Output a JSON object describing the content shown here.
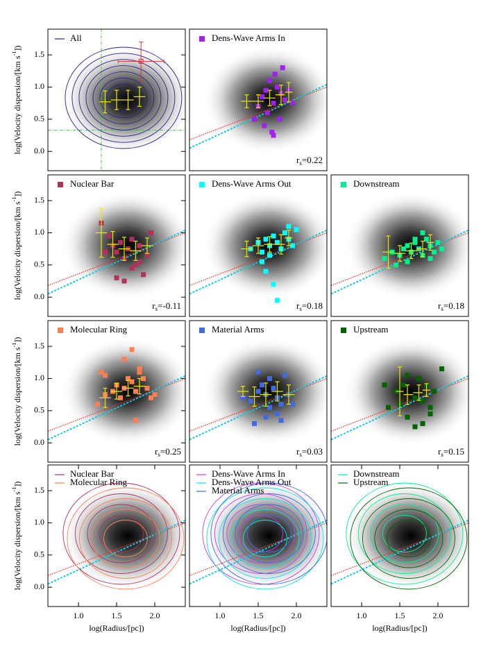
{
  "chart_data": [
    {
      "type": "contour",
      "xlim": [
        0.6,
        2.4
      ],
      "ylim": [
        -0.3,
        1.9
      ],
      "yticks": [
        {
          "value": 0,
          "label": "0.0"
        },
        {
          "value": 0.5,
          "label": "0.5"
        },
        {
          "value": 1.0,
          "label": "1.0"
        },
        {
          "value": 1.5,
          "label": "1.5"
        }
      ],
      "ylabel": "log(Velocity dispersion/[km s",
      "ylabel_sup": "-1",
      "ylabel_end": "])",
      "series": [
        {
          "name": "All",
          "color": "#23238e"
        }
      ],
      "guides": {
        "x": 1.3,
        "y": 0.33,
        "color": "#33cc33"
      },
      "error_point": {
        "x": 1.82,
        "y": 1.4,
        "xerr": 0.3,
        "yerr": 0.3,
        "color": "#dd3333"
      },
      "binned": {
        "color": "#e8e800",
        "x": [
          1.35,
          1.5,
          1.65,
          1.8
        ],
        "y": [
          0.77,
          0.8,
          0.8,
          0.85
        ],
        "err": [
          0.17,
          0.15,
          0.15,
          0.15
        ]
      }
    },
    {
      "type": "scatter",
      "xlim": [
        0.6,
        2.4
      ],
      "ylim": [
        -0.3,
        1.9
      ],
      "series": [
        {
          "name": "Dens-Wave Arms In",
          "color": "#a020f0",
          "x": [
            1.55,
            1.6,
            1.65,
            1.7,
            1.75,
            1.8,
            1.5,
            1.62,
            1.72,
            1.85,
            1.9,
            1.58,
            1.68,
            1.78,
            1.95,
            1.45,
            1.7,
            1.82
          ],
          "y": [
            0.85,
            0.95,
            1.1,
            0.75,
            1.0,
            0.9,
            0.7,
            0.6,
            1.2,
            0.8,
            0.95,
            0.4,
            0.3,
            0.5,
            0.75,
            0.5,
            0.25,
            1.3
          ]
        }
      ],
      "fits": [
        {
          "color": "#ee3333",
          "x": [
            0.6,
            2.4
          ],
          "y": [
            0.18,
            1.0
          ]
        },
        {
          "color": "#11ccdd",
          "x": [
            0.6,
            2.4
          ],
          "y": [
            0.05,
            1.04
          ]
        }
      ],
      "binned": {
        "color": "#e8e800",
        "x": [
          1.35,
          1.5,
          1.65,
          1.8,
          1.9
        ],
        "y": [
          0.78,
          0.78,
          0.83,
          0.88,
          0.92
        ],
        "err": [
          0.1,
          0.1,
          0.12,
          0.15,
          0.15
        ]
      },
      "annotation": {
        "symbol": "r",
        "subscript": "s",
        "text": "=0.22"
      }
    },
    {
      "type": "scatter",
      "xlim": [
        0.6,
        2.4
      ],
      "ylim": [
        -0.3,
        1.9
      ],
      "yticks": [
        {
          "value": 0,
          "label": "0.0"
        },
        {
          "value": 0.5,
          "label": "0.5"
        },
        {
          "value": 1.0,
          "label": "1.0"
        },
        {
          "value": 1.5,
          "label": "1.5"
        }
      ],
      "ylabel": "log(Velocity dispersion/[km s",
      "ylabel_sup": "-1",
      "ylabel_end": "])",
      "series": [
        {
          "name": "Nuclear Bar",
          "color": "#b03060",
          "x": [
            1.3,
            1.4,
            1.45,
            1.5,
            1.55,
            1.6,
            1.65,
            1.7,
            1.75,
            1.8,
            1.85,
            1.9,
            1.95,
            1.5,
            1.6,
            1.7,
            1.8,
            1.35
          ],
          "y": [
            1.15,
            0.95,
            0.8,
            0.7,
            0.85,
            0.6,
            0.75,
            0.9,
            0.5,
            0.8,
            0.35,
            0.65,
            1.0,
            0.3,
            0.25,
            0.45,
            0.55,
            0.7
          ]
        }
      ],
      "fits": [
        {
          "color": "#ee3333",
          "x": [
            0.6,
            2.4
          ],
          "y": [
            0.18,
            1.0
          ]
        },
        {
          "color": "#11ccdd",
          "x": [
            0.6,
            2.4
          ],
          "y": [
            0.05,
            1.04
          ]
        }
      ],
      "binned": {
        "color": "#e8e800",
        "x": [
          1.3,
          1.45,
          1.6,
          1.75,
          1.9
        ],
        "y": [
          1.0,
          0.82,
          0.75,
          0.72,
          0.8
        ],
        "err": [
          0.38,
          0.2,
          0.18,
          0.15,
          0.12
        ]
      },
      "annotation": {
        "symbol": "r",
        "subscript": "s",
        "text": "=-0.11"
      }
    },
    {
      "type": "scatter",
      "xlim": [
        0.6,
        2.4
      ],
      "ylim": [
        -0.3,
        1.9
      ],
      "series": [
        {
          "name": "Dens-Wave Arms Out",
          "color": "#00ffff",
          "x": [
            1.4,
            1.5,
            1.55,
            1.6,
            1.65,
            1.7,
            1.75,
            1.8,
            1.85,
            1.9,
            1.95,
            2.0,
            1.6,
            1.7,
            1.75,
            1.55,
            1.65,
            1.9
          ],
          "y": [
            0.75,
            0.85,
            0.7,
            0.9,
            0.8,
            0.95,
            0.85,
            0.75,
            1.0,
            0.9,
            0.8,
            1.05,
            0.4,
            0.2,
            -0.05,
            0.55,
            0.65,
            1.1
          ]
        }
      ],
      "fits": [
        {
          "color": "#ee3333",
          "x": [
            0.6,
            2.4
          ],
          "y": [
            0.18,
            1.0
          ]
        },
        {
          "color": "#11ccdd",
          "x": [
            0.6,
            2.4
          ],
          "y": [
            0.05,
            1.04
          ]
        }
      ],
      "binned": {
        "color": "#e8e800",
        "x": [
          1.35,
          1.5,
          1.65,
          1.8,
          1.9
        ],
        "y": [
          0.75,
          0.8,
          0.82,
          0.82,
          0.92
        ],
        "err": [
          0.12,
          0.12,
          0.12,
          0.15,
          0.12
        ]
      },
      "annotation": {
        "symbol": "r",
        "subscript": "s",
        "text": "=0.18"
      }
    },
    {
      "type": "scatter",
      "xlim": [
        0.6,
        2.4
      ],
      "ylim": [
        -0.3,
        1.9
      ],
      "series": [
        {
          "name": "Downstream",
          "color": "#00f090",
          "x": [
            1.3,
            1.4,
            1.5,
            1.55,
            1.6,
            1.65,
            1.7,
            1.75,
            1.8,
            1.85,
            1.9,
            1.95,
            2.0,
            2.05,
            1.45,
            1.6,
            1.7,
            1.8,
            1.9
          ],
          "y": [
            0.6,
            0.7,
            0.65,
            0.75,
            0.8,
            0.7,
            0.85,
            0.75,
            0.65,
            0.9,
            0.8,
            0.7,
            0.85,
            0.75,
            0.5,
            0.55,
            0.9,
            1.0,
            0.6
          ]
        }
      ],
      "fits": [
        {
          "color": "#ee3333",
          "x": [
            0.6,
            2.4
          ],
          "y": [
            0.18,
            1.0
          ]
        },
        {
          "color": "#11ccdd",
          "x": [
            0.6,
            2.4
          ],
          "y": [
            0.05,
            1.04
          ]
        }
      ],
      "binned": {
        "color": "#e8e800",
        "x": [
          1.35,
          1.5,
          1.65,
          1.8,
          1.9
        ],
        "y": [
          0.7,
          0.68,
          0.72,
          0.75,
          0.85
        ],
        "err": [
          0.25,
          0.12,
          0.12,
          0.12,
          0.12
        ]
      },
      "annotation": {
        "symbol": "r",
        "subscript": "s",
        "text": "=0.18"
      }
    },
    {
      "type": "scatter",
      "xlim": [
        0.6,
        2.4
      ],
      "ylim": [
        -0.3,
        1.9
      ],
      "yticks": [
        {
          "value": 0,
          "label": "0.0"
        },
        {
          "value": 0.5,
          "label": "0.5"
        },
        {
          "value": 1.0,
          "label": "1.0"
        },
        {
          "value": 1.5,
          "label": "1.5"
        }
      ],
      "ylabel": "log(Velocity dispersion/[km s",
      "ylabel_sup": "-1",
      "ylabel_end": "])",
      "series": [
        {
          "name": "Molecular Ring",
          "color": "#ff7f50",
          "x": [
            1.25,
            1.35,
            1.45,
            1.5,
            1.55,
            1.6,
            1.65,
            1.7,
            1.75,
            1.8,
            1.85,
            1.9,
            1.95,
            2.0,
            1.6,
            1.7,
            1.8,
            1.35,
            1.75,
            1.3
          ],
          "y": [
            0.6,
            0.75,
            0.8,
            0.9,
            0.7,
            0.85,
            1.0,
            0.95,
            0.8,
            1.1,
            1.0,
            0.85,
            0.7,
            0.75,
            1.3,
            1.45,
            1.15,
            1.05,
            0.35,
            1.1
          ]
        }
      ],
      "fits": [
        {
          "color": "#ee3333",
          "x": [
            0.6,
            2.4
          ],
          "y": [
            0.18,
            1.0
          ]
        },
        {
          "color": "#11ccdd",
          "x": [
            0.6,
            2.4
          ],
          "y": [
            0.05,
            1.04
          ]
        }
      ],
      "binned": {
        "color": "#e8e800",
        "x": [
          1.35,
          1.5,
          1.65,
          1.8
        ],
        "y": [
          0.7,
          0.8,
          0.85,
          0.88
        ],
        "err": [
          0.15,
          0.12,
          0.12,
          0.12
        ]
      },
      "annotation": {
        "symbol": "r",
        "subscript": "s",
        "text": "=0.25"
      }
    },
    {
      "type": "scatter",
      "xlim": [
        0.6,
        2.4
      ],
      "ylim": [
        -0.3,
        1.9
      ],
      "series": [
        {
          "name": "Material Arms",
          "color": "#4169e1",
          "x": [
            1.3,
            1.4,
            1.5,
            1.55,
            1.6,
            1.65,
            1.7,
            1.75,
            1.8,
            1.85,
            1.9,
            1.95,
            1.45,
            1.6,
            1.75,
            1.5,
            1.65,
            1.8
          ],
          "y": [
            0.7,
            0.65,
            0.8,
            0.9,
            0.75,
            1.0,
            0.85,
            0.7,
            0.6,
            1.05,
            0.75,
            0.6,
            0.3,
            0.4,
            0.45,
            1.1,
            0.55,
            0.35
          ]
        }
      ],
      "fits": [
        {
          "color": "#ee3333",
          "x": [
            0.6,
            2.4
          ],
          "y": [
            0.18,
            1.0
          ]
        },
        {
          "color": "#11ccdd",
          "x": [
            0.6,
            2.4
          ],
          "y": [
            0.05,
            1.04
          ]
        }
      ],
      "binned": {
        "color": "#e8e800",
        "x": [
          1.3,
          1.45,
          1.6,
          1.75,
          1.9
        ],
        "y": [
          0.8,
          0.72,
          0.75,
          0.8,
          0.75
        ],
        "err": [
          0.08,
          0.15,
          0.18,
          0.15,
          0.15
        ]
      },
      "annotation": {
        "symbol": "r",
        "subscript": "s",
        "text": "=0.03"
      }
    },
    {
      "type": "scatter",
      "xlim": [
        0.6,
        2.4
      ],
      "ylim": [
        -0.3,
        1.9
      ],
      "series": [
        {
          "name": "Upstream",
          "color": "#006400",
          "x": [
            1.35,
            1.45,
            1.5,
            1.55,
            1.6,
            1.7,
            1.75,
            1.8,
            1.85,
            1.9,
            1.95,
            2.05,
            1.3,
            1.6,
            1.7,
            1.8,
            1.9
          ],
          "y": [
            0.55,
            0.8,
            0.6,
            0.9,
            1.05,
            0.7,
            1.0,
            0.65,
            0.9,
            0.45,
            0.8,
            1.15,
            0.9,
            0.4,
            0.25,
            0.3,
            0.55
          ]
        }
      ],
      "fits": [
        {
          "color": "#ee3333",
          "x": [
            0.6,
            2.4
          ],
          "y": [
            0.18,
            1.0
          ]
        },
        {
          "color": "#11ccdd",
          "x": [
            0.6,
            2.4
          ],
          "y": [
            0.05,
            1.04
          ]
        }
      ],
      "binned": {
        "color": "#e8e800",
        "x": [
          1.5,
          1.6,
          1.75,
          1.85
        ],
        "y": [
          0.8,
          0.75,
          0.78,
          0.82
        ],
        "err": [
          0.38,
          0.15,
          0.12,
          0.1
        ]
      },
      "annotation": {
        "symbol": "r",
        "subscript": "s",
        "text": "=0.15"
      }
    },
    {
      "type": "contour",
      "xlim": [
        0.6,
        2.4
      ],
      "ylim": [
        -0.3,
        1.9
      ],
      "yticks": [
        {
          "value": 0,
          "label": "0.0"
        },
        {
          "value": 0.5,
          "label": "0.5"
        },
        {
          "value": 1.0,
          "label": "1.0"
        },
        {
          "value": 1.5,
          "label": "1.5"
        }
      ],
      "xticks": [
        {
          "value": 1.0,
          "label": "1.0"
        },
        {
          "value": 1.5,
          "label": "1.5"
        },
        {
          "value": 2.0,
          "label": "2.0"
        }
      ],
      "ylabel": "log(Velocity dispersion/[km s",
      "ylabel_sup": "-1",
      "ylabel_end": "])",
      "xlabel": "log(Radius/[pc])",
      "series": [
        {
          "name": "Nuclear Bar",
          "color": "#b03060"
        },
        {
          "name": "Molecular Ring",
          "color": "#ff7f50"
        }
      ],
      "fits": [
        {
          "color": "#ee3333",
          "x": [
            0.6,
            2.4
          ],
          "y": [
            0.18,
            1.0
          ]
        },
        {
          "color": "#11ccdd",
          "x": [
            0.6,
            2.4
          ],
          "y": [
            0.05,
            1.04
          ]
        }
      ]
    },
    {
      "type": "contour",
      "xlim": [
        0.6,
        2.4
      ],
      "ylim": [
        -0.3,
        1.9
      ],
      "xticks": [
        {
          "value": 1.0,
          "label": "1.0"
        },
        {
          "value": 1.5,
          "label": "1.5"
        },
        {
          "value": 2.0,
          "label": "2.0"
        }
      ],
      "xlabel": "log(Radius/[pc])",
      "series": [
        {
          "name": "Dens-Wave Arms In",
          "color": "#c040f0"
        },
        {
          "name": "Dens-Wave Arms Out",
          "color": "#00e8f0"
        },
        {
          "name": "Material Arms",
          "color": "#4169e1"
        }
      ],
      "fits": [
        {
          "color": "#ee3333",
          "x": [
            0.6,
            2.4
          ],
          "y": [
            0.18,
            1.0
          ]
        },
        {
          "color": "#11ccdd",
          "x": [
            0.6,
            2.4
          ],
          "y": [
            0.05,
            1.04
          ]
        }
      ]
    },
    {
      "type": "contour",
      "xlim": [
        0.6,
        2.4
      ],
      "ylim": [
        -0.3,
        1.9
      ],
      "xticks": [
        {
          "value": 1.0,
          "label": "1.0"
        },
        {
          "value": 1.5,
          "label": "1.5"
        },
        {
          "value": 2.0,
          "label": "2.0"
        }
      ],
      "xlabel": "log(Radius/[pc])",
      "series": [
        {
          "name": "Downstream",
          "color": "#00f090"
        },
        {
          "name": "Upstream",
          "color": "#006400"
        }
      ],
      "fits": [
        {
          "color": "#ee3333",
          "x": [
            0.6,
            2.4
          ],
          "y": [
            0.18,
            1.0
          ]
        },
        {
          "color": "#11ccdd",
          "x": [
            0.6,
            2.4
          ],
          "y": [
            0.05,
            1.04
          ]
        }
      ]
    }
  ]
}
